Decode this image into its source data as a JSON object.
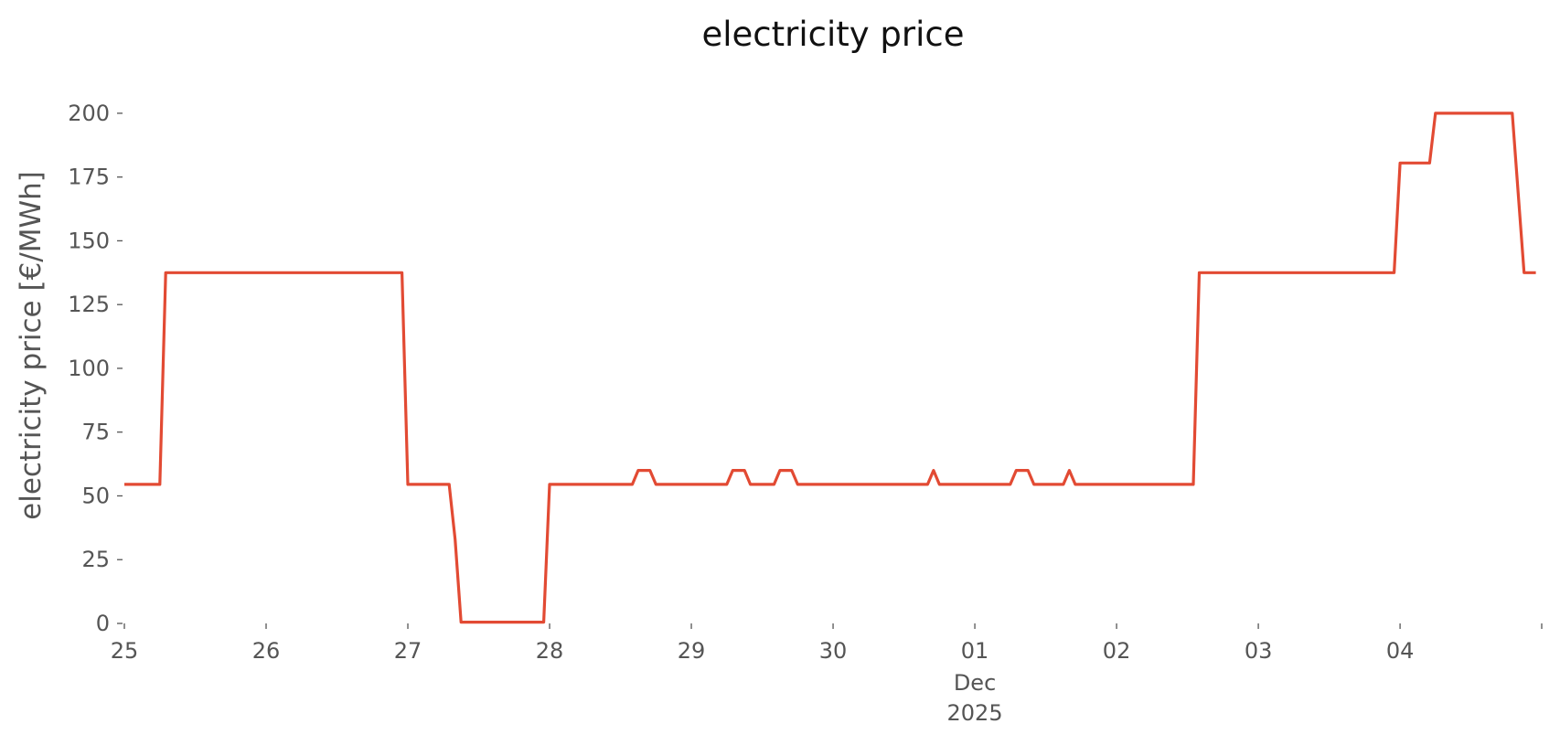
{
  "chart_data": {
    "type": "line",
    "title": "electricity price",
    "xlabel": "",
    "ylabel": "electricity price [€/MWh]",
    "ylim": [
      0,
      210
    ],
    "xlim": [
      "2025-11-25T00:00",
      "2025-12-04T23:59"
    ],
    "grid": false,
    "x_ticks": [
      {
        "x": "2025-11-25T00:00",
        "label": "25"
      },
      {
        "x": "2025-11-26T00:00",
        "label": "26"
      },
      {
        "x": "2025-11-27T00:00",
        "label": "27"
      },
      {
        "x": "2025-11-28T00:00",
        "label": "28"
      },
      {
        "x": "2025-11-29T00:00",
        "label": "29"
      },
      {
        "x": "2025-11-30T00:00",
        "label": "30"
      },
      {
        "x": "2025-12-01T00:00",
        "label": "01"
      },
      {
        "x": "2025-12-02T00:00",
        "label": "02"
      },
      {
        "x": "2025-12-03T00:00",
        "label": "03"
      },
      {
        "x": "2025-12-04T00:00",
        "label": "04"
      }
    ],
    "x_subtick_label": {
      "x": "2025-12-01T00:00",
      "lines": [
        "Dec",
        "2025"
      ]
    },
    "y_ticks": [
      0,
      25,
      50,
      75,
      100,
      125,
      150,
      175,
      200
    ],
    "color": "#E24A33",
    "series": [
      {
        "x": [
          "2025-11-25T00:00",
          "2025-11-25T06:00",
          "2025-11-25T07:00",
          "2025-11-26T23:00",
          "2025-11-27T00:00",
          "2025-11-27T07:00",
          "2025-11-27T08:00",
          "2025-11-27T09:00",
          "2025-11-27T23:00",
          "2025-11-28T00:00",
          "2025-11-28T14:00",
          "2025-11-28T15:00",
          "2025-11-28T17:00",
          "2025-11-28T18:00",
          "2025-11-29T06:00",
          "2025-11-29T07:00",
          "2025-11-29T09:00",
          "2025-11-29T10:00",
          "2025-11-29T14:00",
          "2025-11-29T15:00",
          "2025-11-29T17:00",
          "2025-11-29T18:00",
          "2025-11-30T16:00",
          "2025-11-30T17:00",
          "2025-11-30T18:00",
          "2025-12-01T06:00",
          "2025-12-01T07:00",
          "2025-12-01T09:00",
          "2025-12-01T10:00",
          "2025-12-01T15:00",
          "2025-12-01T16:00",
          "2025-12-01T17:00",
          "2025-12-02T13:00",
          "2025-12-02T14:00",
          "2025-12-03T23:00",
          "2025-12-04T00:00",
          "2025-12-04T05:00",
          "2025-12-04T06:00",
          "2025-12-04T19:00",
          "2025-12-04T21:00",
          "2025-12-04T23:00"
        ],
        "y": [
          54.5,
          54.5,
          137.5,
          137.5,
          54.5,
          54.5,
          33,
          0.5,
          0.5,
          54.5,
          54.5,
          60,
          60,
          54.5,
          54.5,
          60,
          60,
          54.5,
          54.5,
          60,
          60,
          54.5,
          54.5,
          60,
          54.5,
          54.5,
          60,
          60,
          54.5,
          54.5,
          60,
          54.5,
          54.5,
          137.5,
          137.5,
          180.5,
          180.5,
          200,
          200,
          137.5,
          137.5
        ]
      }
    ]
  }
}
